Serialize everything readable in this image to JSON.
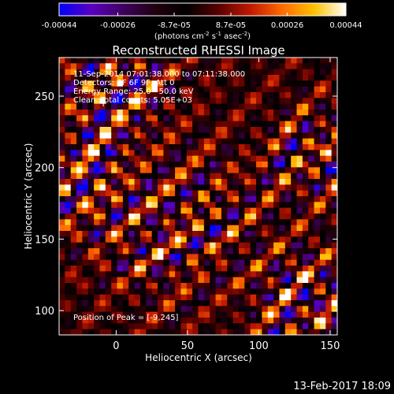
{
  "chart_data": {
    "type": "heatmap",
    "title": "Reconstructed RHESSI Image",
    "xlabel": "Heliocentric X (arcsec)",
    "ylabel": "Heliocentric Y (arcsec)",
    "xlim": [
      -40,
      155
    ],
    "ylim": [
      83,
      277
    ],
    "x_ticks": [
      0,
      50,
      100,
      150
    ],
    "y_ticks": [
      100,
      150,
      200,
      250
    ],
    "colorbar": {
      "min": -0.00044,
      "max": 0.00044,
      "ticks": [
        "-0.00044",
        "-0.00026",
        "-8.7e-05",
        "8.7e-05",
        "0.00026",
        "0.00044"
      ],
      "tick_values": [
        -0.00044,
        -0.00026,
        -8.7e-05,
        8.7e-05,
        0.00026,
        0.00044
      ],
      "units_parts": {
        "a": "(photons cm",
        "a_sup": "-2",
        "b": " s",
        "b_sup": "-1",
        "c": " asec",
        "c_sup": "-2",
        "d": ")"
      },
      "colormap": [
        "#0000ff",
        "#5a00c0",
        "#400060",
        "#200010",
        "#000000",
        "#5a0000",
        "#c01800",
        "#ff6a00",
        "#ffc000",
        "#ffffff"
      ]
    },
    "annotations": [
      "11-Sep-2014 07:01:38.000 to 07:11:38.000",
      "Detectors: 3F 6F 9F, Att 0",
      "Energy Range: 25.0 - 50.0 keV",
      "Clean. Total counts: 5.05E+03",
      "Position of Peak = [-9,245]"
    ],
    "peak": {
      "x": -9,
      "y": 245
    }
  },
  "footer": {
    "timestamp": "13-Feb-2017 18:09"
  }
}
